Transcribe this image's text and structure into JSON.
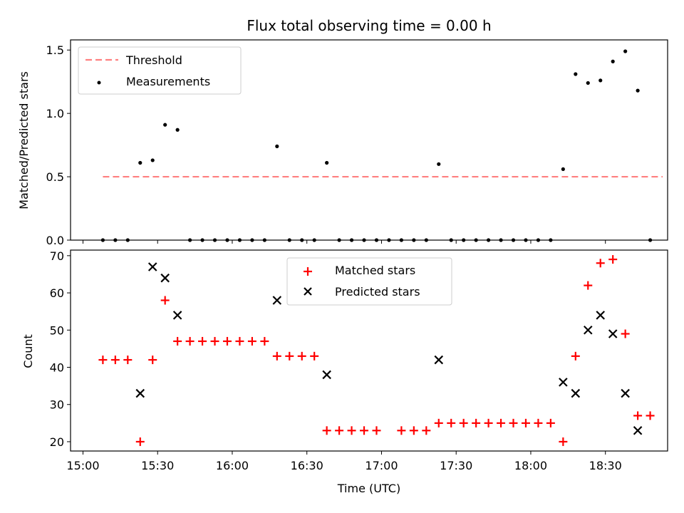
{
  "title": "Flux total observing time = 0.00 h",
  "chart_data": [
    {
      "type": "scatter",
      "ylabel": "Matched/Predicted stars",
      "xlim": [
        "14:55",
        "18:55"
      ],
      "ylim": [
        0,
        1.58
      ],
      "yticks": [
        "0.0",
        "0.5",
        "1.0",
        "1.5"
      ],
      "legend_position": "top-left",
      "threshold": {
        "name": "Threshold",
        "value": 0.5,
        "x_start": "15:08",
        "x_end": "18:53",
        "color": "#ff8080"
      },
      "series": [
        {
          "name": "Measurements",
          "color": "#000000",
          "x": [
            "15:08",
            "15:13",
            "15:18",
            "15:23",
            "15:28",
            "15:33",
            "15:38",
            "15:43",
            "15:48",
            "15:53",
            "15:58",
            "16:03",
            "16:08",
            "16:13",
            "16:18",
            "16:23",
            "16:28",
            "16:33",
            "16:38",
            "16:43",
            "16:48",
            "16:53",
            "16:58",
            "17:03",
            "17:08",
            "17:13",
            "17:18",
            "17:23",
            "17:28",
            "17:33",
            "17:38",
            "17:43",
            "17:48",
            "17:53",
            "17:58",
            "18:03",
            "18:08",
            "18:13",
            "18:18",
            "18:23",
            "18:28",
            "18:33",
            "18:38",
            "18:43",
            "18:48"
          ],
          "y": [
            0,
            0,
            0,
            0.61,
            0.63,
            0.91,
            0.87,
            0,
            0,
            0,
            0,
            0,
            0,
            0,
            0.74,
            0,
            0,
            0,
            0.61,
            0,
            0,
            0,
            0,
            0,
            0,
            0,
            0,
            0.6,
            0,
            0,
            0,
            0,
            0,
            0,
            0,
            0,
            0,
            0.56,
            1.31,
            1.24,
            1.26,
            1.41,
            1.49,
            1.18,
            0
          ]
        }
      ]
    },
    {
      "type": "scatter",
      "xlabel": "Time (UTC)",
      "ylabel": "Count",
      "xlim": [
        "14:55",
        "18:55"
      ],
      "ylim": [
        17.5,
        71.5
      ],
      "yticks": [
        "20",
        "30",
        "40",
        "50",
        "60",
        "70"
      ],
      "xticks": [
        "15:00",
        "15:30",
        "16:00",
        "16:30",
        "17:00",
        "17:30",
        "18:00",
        "18:30"
      ],
      "legend_position": "top-center",
      "series": [
        {
          "name": "Matched stars",
          "marker": "+",
          "color": "#ff0000",
          "x": [
            "15:08",
            "15:13",
            "15:18",
            "15:23",
            "15:28",
            "15:33",
            "15:38",
            "15:43",
            "15:48",
            "15:53",
            "15:58",
            "16:03",
            "16:08",
            "16:13",
            "16:18",
            "16:23",
            "16:28",
            "16:33",
            "16:38",
            "16:43",
            "16:48",
            "16:53",
            "16:58",
            "17:08",
            "17:13",
            "17:18",
            "17:23",
            "17:28",
            "17:33",
            "17:38",
            "17:43",
            "17:48",
            "17:53",
            "17:58",
            "18:03",
            "18:08",
            "18:13",
            "18:18",
            "18:23",
            "18:28",
            "18:33",
            "18:38",
            "18:43",
            "18:48"
          ],
          "y": [
            42,
            42,
            42,
            20,
            42,
            58,
            47,
            47,
            47,
            47,
            47,
            47,
            47,
            47,
            43,
            43,
            43,
            43,
            23,
            23,
            23,
            23,
            23,
            23,
            23,
            23,
            25,
            25,
            25,
            25,
            25,
            25,
            25,
            25,
            25,
            25,
            20,
            43,
            62,
            68,
            69,
            49,
            27,
            27
          ]
        },
        {
          "name": "Predicted stars",
          "marker": "x",
          "color": "#000000",
          "x": [
            "15:23",
            "15:28",
            "15:33",
            "15:38",
            "16:18",
            "16:38",
            "17:23",
            "18:13",
            "18:18",
            "18:23",
            "18:28",
            "18:33",
            "18:38",
            "18:43"
          ],
          "y": [
            33,
            67,
            64,
            54,
            58,
            38,
            42,
            36,
            33,
            50,
            54,
            49,
            33,
            23
          ]
        }
      ]
    }
  ]
}
